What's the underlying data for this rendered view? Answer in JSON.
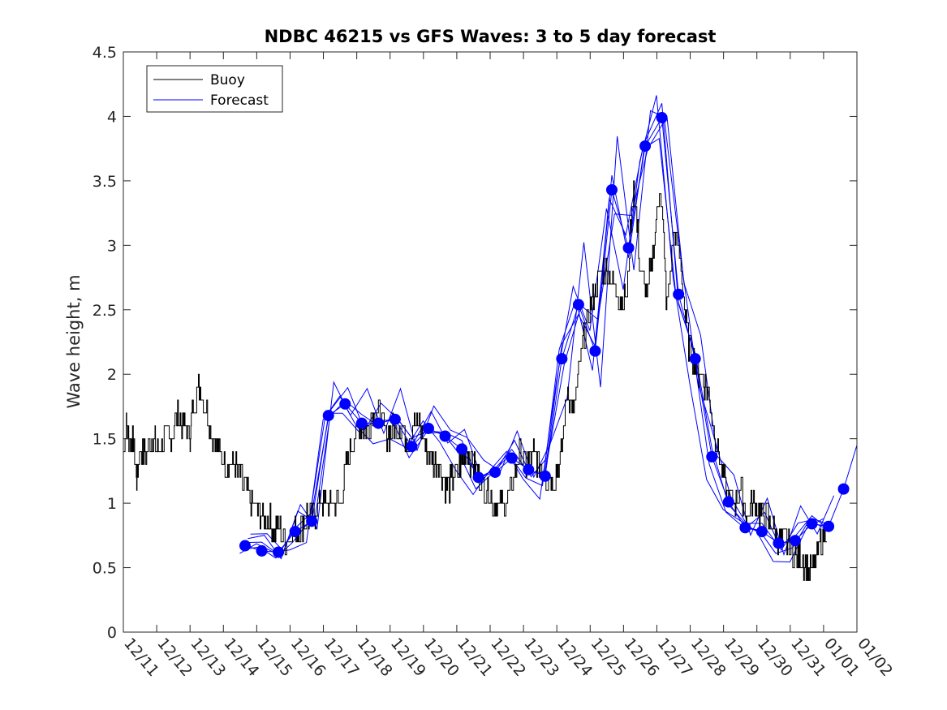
{
  "chart_data": {
    "type": "line",
    "title": "NDBC 46215 vs GFS Waves: 3 to 5 day forecast",
    "xlabel": "",
    "ylabel": "Wave height, m",
    "ylim": [
      0,
      4.5
    ],
    "xlim": [
      0,
      22
    ],
    "yticks": [
      0,
      0.5,
      1,
      1.5,
      2,
      2.5,
      3,
      3.5,
      4,
      4.5
    ],
    "ytick_labels": [
      "0",
      "0.5",
      "1",
      "1.5",
      "2",
      "2.5",
      "3",
      "3.5",
      "4",
      "4.5"
    ],
    "xtick_labels": [
      "12/11",
      "12/12",
      "12/13",
      "12/14",
      "12/15",
      "12/16",
      "12/17",
      "12/18",
      "12/19",
      "12/20",
      "12/21",
      "12/22",
      "12/23",
      "12/24",
      "12/25",
      "12/26",
      "12/27",
      "12/28",
      "12/29",
      "12/30",
      "12/31",
      "01/01",
      "01/02"
    ],
    "legend": {
      "position": "top-left",
      "entries": [
        {
          "label": "Buoy",
          "color": "#000000"
        },
        {
          "label": "Forecast",
          "color": "#0000ff"
        }
      ]
    },
    "colors": {
      "buoy": "#000000",
      "forecast": "#0000ff",
      "markers": "#0000ff"
    },
    "series": [
      {
        "name": "Buoy",
        "x": [
          0.0,
          0.1,
          0.2,
          0.3,
          0.4,
          0.5,
          0.7,
          0.9,
          1.0,
          1.2,
          1.4,
          1.6,
          1.8,
          2.0,
          2.1,
          2.3,
          2.5,
          2.7,
          2.9,
          3.1,
          3.3,
          3.5,
          3.7,
          3.9,
          4.1,
          4.3,
          4.5,
          4.7,
          4.9,
          5.1,
          5.3,
          5.5,
          5.7,
          5.9,
          6.1,
          6.3,
          6.5,
          6.7,
          6.9,
          7.1,
          7.3,
          7.5,
          7.7,
          7.9,
          8.1,
          8.3,
          8.5,
          8.7,
          8.9,
          9.1,
          9.3,
          9.5,
          9.7,
          9.9,
          10.1,
          10.3,
          10.5,
          10.7,
          10.9,
          11.1,
          11.3,
          11.5,
          11.7,
          11.9,
          12.1,
          12.3,
          12.5,
          12.7,
          12.9,
          13.1,
          13.3,
          13.5,
          13.7,
          13.9,
          14.1,
          14.3,
          14.5,
          14.7,
          14.9,
          15.1,
          15.3,
          15.5,
          15.7,
          15.9,
          16.1,
          16.3,
          16.5,
          16.7,
          16.9,
          17.1,
          17.3,
          17.5,
          17.7,
          17.9,
          18.1,
          18.3,
          18.5,
          18.7,
          18.9,
          19.1,
          19.3,
          19.5,
          19.7,
          19.9,
          20.1,
          20.3,
          20.5,
          20.7,
          20.9,
          21.1
        ],
        "values": [
          1.4,
          1.6,
          1.5,
          1.5,
          1.2,
          1.4,
          1.4,
          1.5,
          1.4,
          1.5,
          1.5,
          1.7,
          1.6,
          1.5,
          1.8,
          1.9,
          1.7,
          1.5,
          1.4,
          1.3,
          1.3,
          1.2,
          1.1,
          1.0,
          0.9,
          0.9,
          0.8,
          0.8,
          0.7,
          0.8,
          0.8,
          0.9,
          0.9,
          1.0,
          1.0,
          1.0,
          1.0,
          1.3,
          1.5,
          1.6,
          1.6,
          1.7,
          1.7,
          1.5,
          1.6,
          1.6,
          1.5,
          1.6,
          1.6,
          1.4,
          1.3,
          1.3,
          1.1,
          1.2,
          1.3,
          1.4,
          1.3,
          1.2,
          1.1,
          1.0,
          1.0,
          1.0,
          1.2,
          1.4,
          1.3,
          1.4,
          1.3,
          1.2,
          1.2,
          1.3,
          1.9,
          1.7,
          2.1,
          2.4,
          2.6,
          2.8,
          2.8,
          2.7,
          2.6,
          2.6,
          3.5,
          2.8,
          2.6,
          3.0,
          3.5,
          2.5,
          3.1,
          2.9,
          2.3,
          2.1,
          2.0,
          1.9,
          1.6,
          1.3,
          1.1,
          1.0,
          1.1,
          0.9,
          1.0,
          0.9,
          0.9,
          0.8,
          0.7,
          0.7,
          0.6,
          0.6,
          0.5,
          0.5,
          0.7,
          0.8
        ]
      },
      {
        "name": "Forecast",
        "x": [
          3.65,
          4.15,
          4.65,
          5.15,
          5.65,
          6.15,
          6.65,
          7.15,
          7.65,
          8.15,
          8.65,
          9.15,
          9.65,
          10.15,
          10.65,
          11.15,
          11.65,
          12.15,
          12.65,
          13.15,
          13.65,
          14.15,
          14.65,
          15.15,
          15.65,
          16.15,
          16.65,
          17.15,
          17.65,
          18.15,
          18.65,
          19.15,
          19.65,
          20.15,
          20.65,
          21.15
        ],
        "values": [
          0.67,
          0.63,
          0.62,
          0.78,
          0.86,
          1.68,
          1.77,
          1.62,
          1.62,
          1.65,
          1.44,
          1.58,
          1.52,
          1.42,
          1.2,
          1.24,
          1.35,
          1.26,
          1.21,
          2.12,
          2.54,
          2.18,
          3.43,
          2.98,
          3.77,
          3.99,
          2.62,
          2.12,
          1.36,
          1.01,
          0.81,
          0.78,
          0.69,
          0.71,
          0.84,
          0.82
        ]
      }
    ],
    "final_marker": {
      "x": 21.6,
      "y": 1.11
    }
  }
}
